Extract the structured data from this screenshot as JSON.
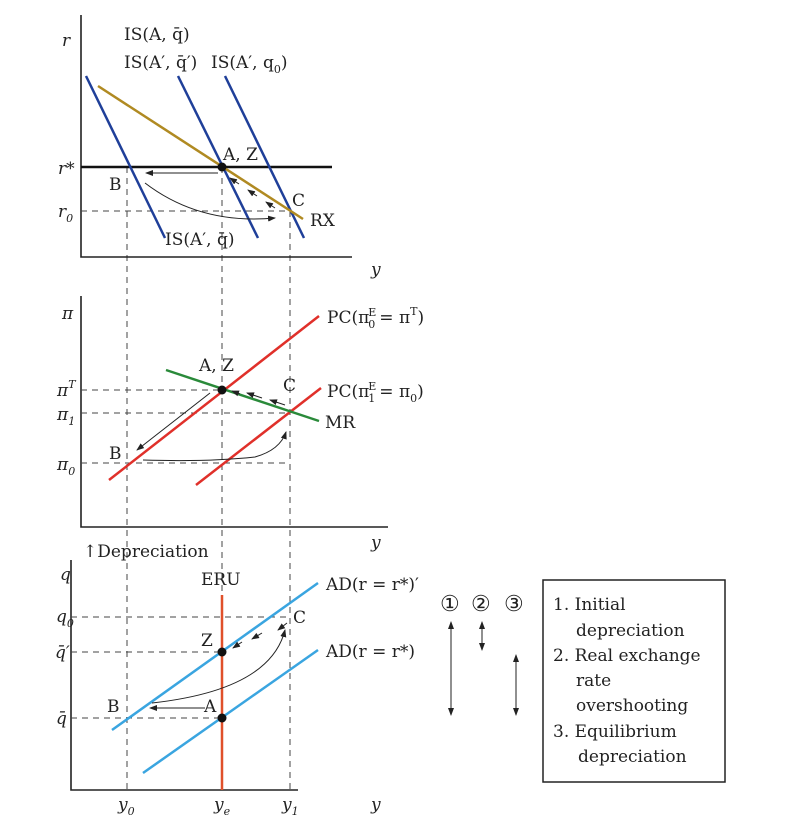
{
  "colors": {
    "is": "#1f3f99",
    "rx": "#b08a22",
    "pc": "#e0302a",
    "mr": "#2a8a3a",
    "ad": "#3aa5e0",
    "eru": "#e0502a"
  },
  "top": {
    "r": "r",
    "r_star": "r*",
    "r0": "r",
    "r0_sub": "0",
    "y": "y",
    "is1": "IS(A, q̄)",
    "is2": "IS(A′, q̄′)",
    "is3_base": "IS(A′, q",
    "is3_sub": "0",
    "is3_end": ")",
    "is4": "IS(A′, q̄)",
    "az": "A, Z",
    "b": "B",
    "c": "C",
    "rx": "RX"
  },
  "mid": {
    "pi": "π",
    "piT": "π",
    "piT_sup": "T",
    "pi1": "π",
    "pi1_sub": "1",
    "pi0": "π",
    "pi0_sub": "0",
    "y": "y",
    "pc1": "PC(π",
    "pc1_sub": "0",
    "pc1_sup": "E",
    "pc1_end": "= π",
    "pc1_end_sup": "T",
    "pc1_close": ")",
    "pc2": "PC(π",
    "pc2_sub": "1",
    "pc2_sup": "E",
    "pc2_end": "= π",
    "pc2_end_sub": "0",
    "pc2_close": ")",
    "mr": "MR",
    "az": "A, Z",
    "b": "B",
    "c": "C"
  },
  "bot": {
    "depr": "↑Depreciation",
    "q": "q",
    "q0": "q",
    "q0_sub": "0",
    "qbarp": "q̄′",
    "qbar": "q̄",
    "eru": "ERU",
    "ad1": "AD(r = r*)′",
    "ad2": "AD(r = r*)",
    "z": "Z",
    "a": "A",
    "b": "B",
    "c": "C",
    "y0": "y",
    "y0_sub": "0",
    "ye": "y",
    "ye_sub": "e",
    "y1": "y",
    "y1_sub": "1",
    "y": "y"
  },
  "steps": {
    "circles": [
      "①",
      "②",
      "③"
    ],
    "legend": [
      "1. Initial",
      "depreciation",
      "2. Real exchange",
      "rate",
      "overshooting",
      "3. Equilibrium",
      "depreciation"
    ]
  }
}
